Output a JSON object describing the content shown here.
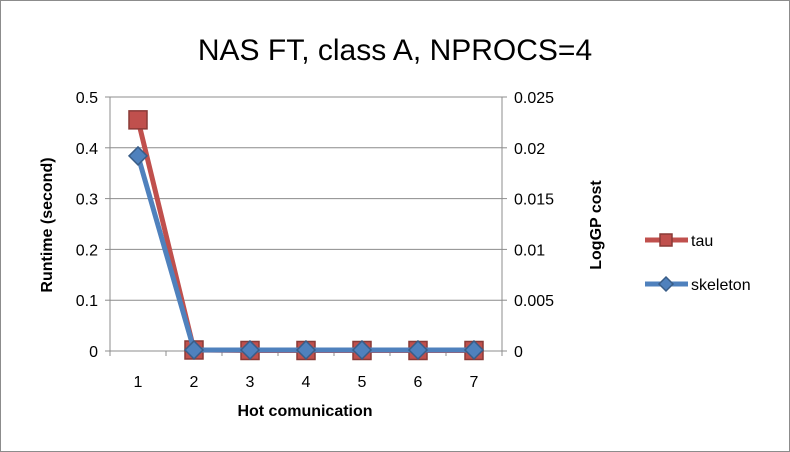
{
  "chart_data": {
    "type": "line",
    "title": "NAS FT, class A, NPROCS=4",
    "xlabel": "Hot comunication",
    "ylabel": "Runtime (second)",
    "y2label": "LogGP cost",
    "categories": [
      "1",
      "2",
      "3",
      "4",
      "5",
      "6",
      "7"
    ],
    "ylim": [
      0,
      0.5
    ],
    "y2lim": [
      0,
      0.025
    ],
    "yticks": [
      "0",
      "0.1",
      "0.2",
      "0.3",
      "0.4",
      "0.5"
    ],
    "y2ticks": [
      "0",
      "0.005",
      "0.01",
      "0.015",
      "0.02",
      "0.025"
    ],
    "grid": true,
    "legend_position": "right",
    "series": [
      {
        "name": "tau",
        "axis": "left",
        "values": [
          0.455,
          0.002,
          0.001,
          0.001,
          0.001,
          0.001,
          0.001
        ],
        "color": "#c0504d",
        "marker": "square"
      },
      {
        "name": "skeleton",
        "axis": "right",
        "values": [
          0.0192,
          0.0001,
          0.0001,
          0.0001,
          0.0001,
          0.0001,
          0.0001
        ],
        "color": "#4f81bd",
        "marker": "diamond"
      }
    ]
  }
}
